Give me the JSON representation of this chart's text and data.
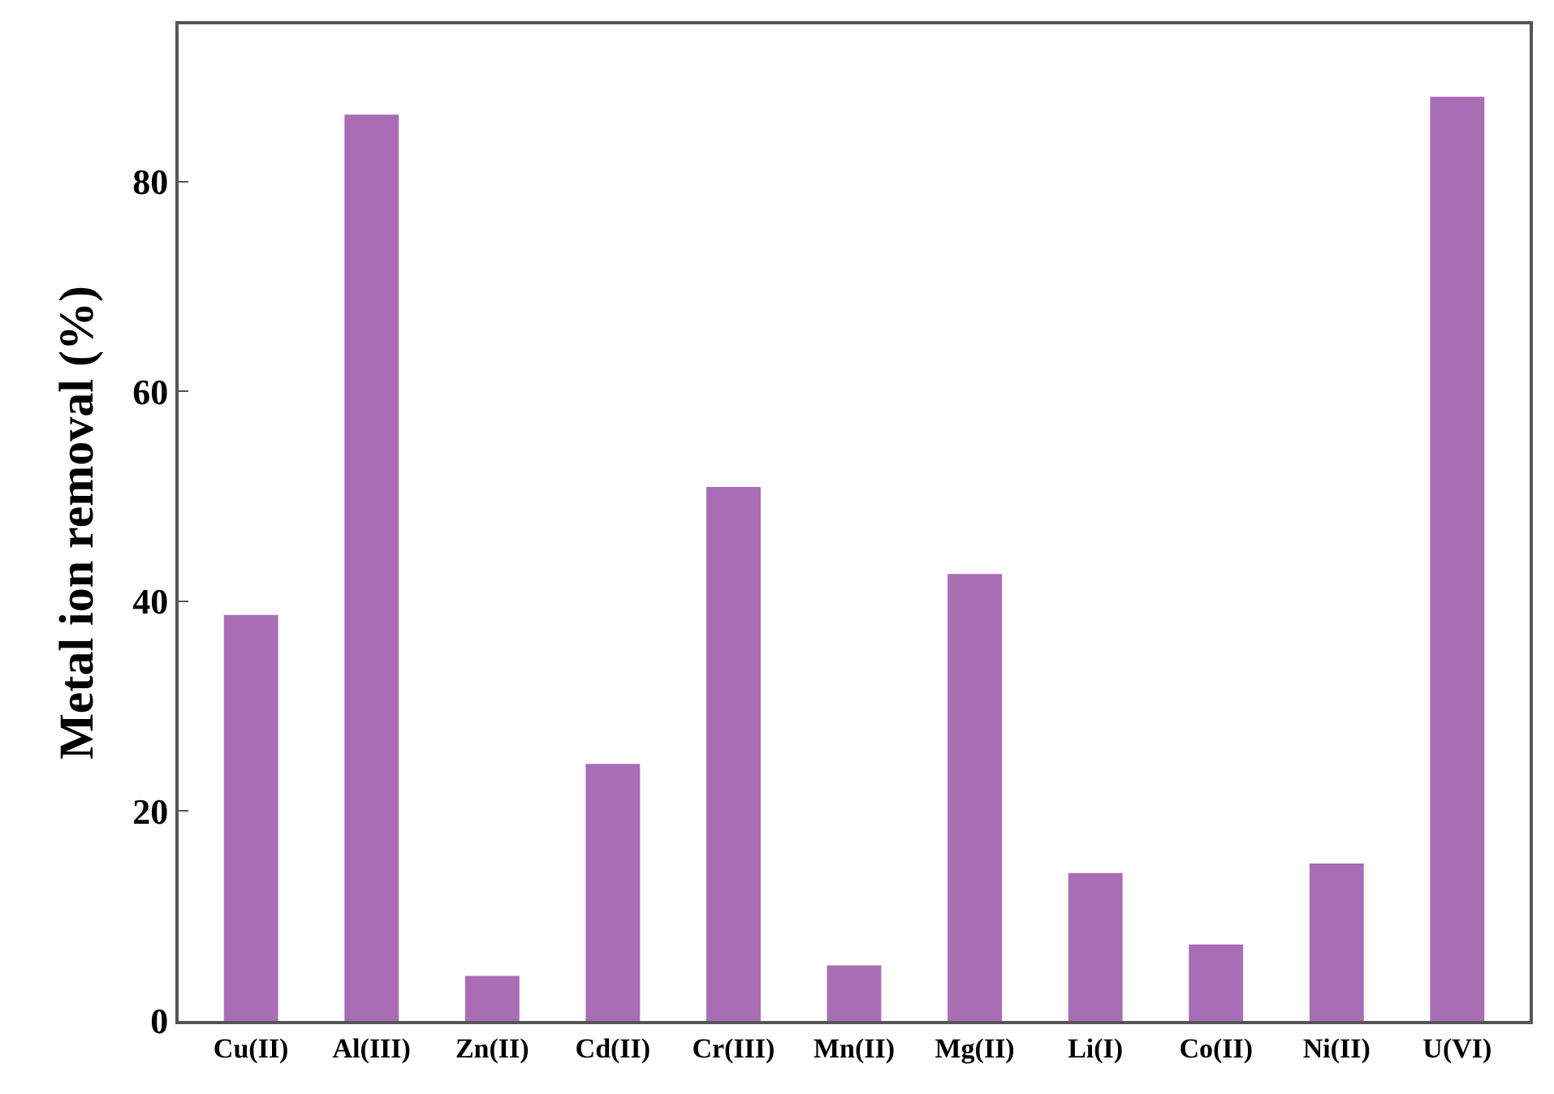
{
  "chart_data": {
    "type": "bar",
    "ylabel": "Metal ion removal (%)",
    "categories": [
      "Cu(II)",
      "Al(III)",
      "Zn(II)",
      "Cd(II)",
      "Cr(III)",
      "Mn(II)",
      "Mg(II)",
      "Li(I)",
      "Co(II)",
      "Ni(II)",
      "U(VI)"
    ],
    "values": [
      38.7,
      86.4,
      4.3,
      24.5,
      50.9,
      5.3,
      42.6,
      14.1,
      7.3,
      15.0,
      88.1
    ],
    "color": "#a86db5",
    "ylim": [
      0,
      95
    ],
    "yticks": [
      0,
      20,
      40,
      60,
      80
    ]
  }
}
